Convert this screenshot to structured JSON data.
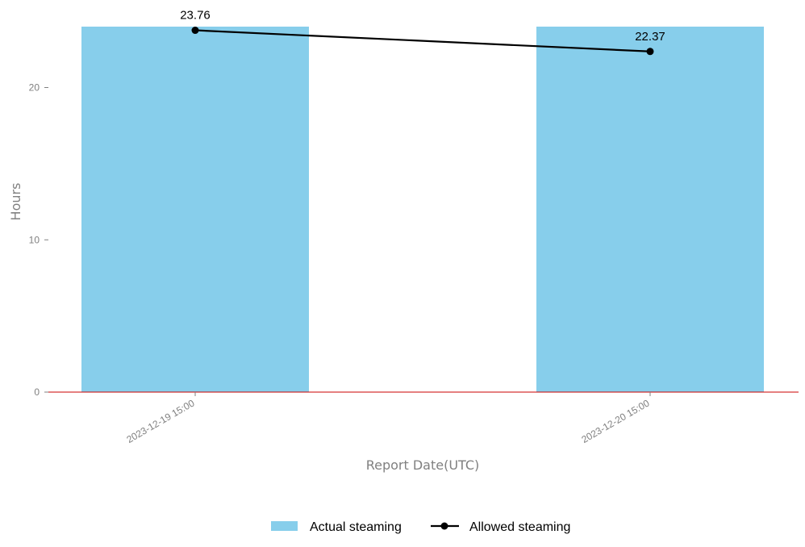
{
  "chart_data": {
    "type": "bar",
    "categories": [
      "2023-12-19 15:00",
      "2023-12-20 15:00"
    ],
    "series": [
      {
        "name": "Actual steaming",
        "kind": "bar",
        "values": [
          24,
          24
        ],
        "color": "#87ceeb"
      },
      {
        "name": "Allowed steaming",
        "kind": "line",
        "values": [
          23.76,
          22.37
        ],
        "color": "#000000",
        "marker": "circle"
      }
    ],
    "data_labels": [
      "23.76",
      "22.37"
    ],
    "xlabel": "Report Date(UTC)",
    "ylabel": "Hours",
    "ylim": [
      0,
      24
    ],
    "yticks": [
      0,
      10,
      20
    ],
    "baseline_color": "#cc0000",
    "grid": false,
    "legend_position": "bottom-center"
  }
}
